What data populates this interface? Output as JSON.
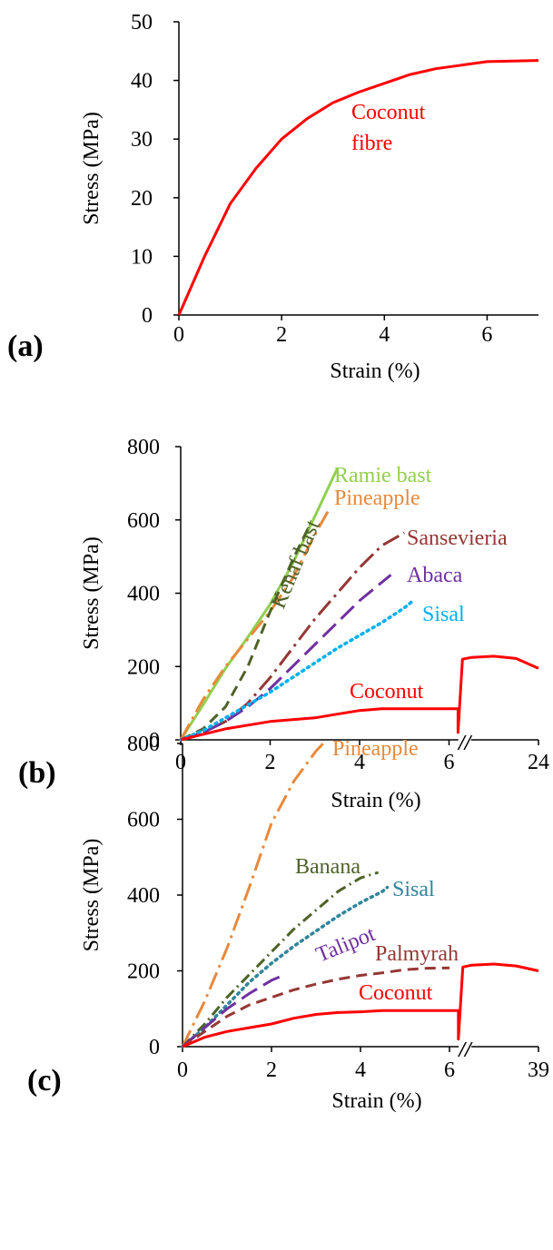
{
  "chart_data": [
    {
      "type": "line",
      "panel_label": "(a)",
      "xlabel": "Strain (%)",
      "ylabel": "Stress (MPa)",
      "xlim": [
        0,
        7
      ],
      "ylim": [
        0,
        50
      ],
      "xticks": [
        "0",
        "2",
        "4",
        "6"
      ],
      "yticks": [
        "0",
        "10",
        "20",
        "30",
        "40",
        "50"
      ],
      "series": [
        {
          "name": "Coconut fibre",
          "label_lines": [
            "Coconut",
            "fibre"
          ],
          "color": "#ff0000",
          "dash": "solid",
          "x": [
            0,
            0.5,
            1.0,
            1.5,
            2.0,
            2.5,
            3.0,
            3.5,
            4.0,
            4.5,
            5.0,
            5.5,
            6.0,
            7.0
          ],
          "y": [
            0,
            10,
            19,
            25,
            30,
            33.5,
            36.2,
            38,
            39.5,
            41,
            42,
            42.6,
            43.2,
            43.4
          ]
        }
      ]
    },
    {
      "type": "line",
      "panel_label": "(b)",
      "xlabel": "Strain (%)",
      "ylabel": "Stress (MPa)",
      "xlim": [
        0,
        8
      ],
      "ylim": [
        0,
        800
      ],
      "xticks": [
        "0",
        "2",
        "4",
        "6",
        "24"
      ],
      "yticks": [
        "0",
        "200",
        "400",
        "600",
        "800"
      ],
      "break_label": "//",
      "series": [
        {
          "name": "Ramie bast",
          "label_lines": [
            "Ramie bast"
          ],
          "color": "#92d050",
          "dash": "solid",
          "x": [
            0,
            0.5,
            1.0,
            1.5,
            2.0,
            2.5,
            3.0,
            3.5
          ],
          "y": [
            0,
            95,
            195,
            280,
            370,
            480,
            610,
            740
          ]
        },
        {
          "name": "Pineapple",
          "label_lines": [
            "Pineapple"
          ],
          "color": "#e8893b",
          "dash": "longdashdot",
          "x": [
            0,
            0.5,
            1.0,
            1.5,
            2.0,
            2.5,
            3.0,
            3.3
          ],
          "y": [
            0,
            110,
            200,
            275,
            350,
            440,
            560,
            625
          ]
        },
        {
          "name": "Kenaf bast",
          "label_lines": [
            "Kenaf bast"
          ],
          "color": "#4f6228",
          "dash": "dash",
          "x": [
            0,
            0.5,
            1.0,
            1.5,
            2.0,
            2.5,
            2.9
          ],
          "y": [
            0,
            30,
            90,
            200,
            350,
            490,
            590
          ]
        },
        {
          "name": "Sansevieria",
          "label_lines": [
            "Sansevieria"
          ],
          "color": "#953735",
          "dash": "longdashdot",
          "x": [
            0,
            0.5,
            1.0,
            1.5,
            2.0,
            2.5,
            3.0,
            3.5,
            4.0,
            4.5,
            5.0
          ],
          "y": [
            0,
            20,
            50,
            100,
            170,
            250,
            330,
            400,
            470,
            530,
            565
          ]
        },
        {
          "name": "Abaca",
          "label_lines": [
            "Abaca"
          ],
          "color": "#7030a0",
          "dash": "longdash",
          "x": [
            0,
            0.5,
            1.0,
            1.5,
            2.0,
            2.5,
            3.0,
            3.5,
            4.0,
            4.5,
            4.7
          ],
          "y": [
            0,
            20,
            50,
            90,
            140,
            200,
            260,
            320,
            380,
            430,
            450
          ]
        },
        {
          "name": "Sisal",
          "label_lines": [
            "Sisal"
          ],
          "color": "#00b0f0",
          "dash": "dot",
          "x": [
            0,
            0.5,
            1.0,
            1.5,
            2.0,
            2.5,
            3.0,
            3.5,
            4.0,
            4.5,
            5.0,
            5.2
          ],
          "y": [
            0,
            25,
            60,
            95,
            130,
            170,
            210,
            250,
            285,
            320,
            360,
            380
          ]
        },
        {
          "name": "Coconut",
          "label_lines": [
            "Coconut"
          ],
          "color": "#ff0000",
          "dash": "solid",
          "x": [
            0,
            0.5,
            1.0,
            2.0,
            3.0,
            3.5,
            4.0,
            4.5,
            5.0,
            5.5,
            6.0,
            6.2,
            6.2,
            6.3,
            6.5,
            7.0,
            7.5,
            8.0
          ],
          "y": [
            0,
            15,
            30,
            50,
            60,
            70,
            80,
            85,
            85,
            85,
            85,
            85,
            20,
            220,
            225,
            228,
            222,
            195
          ]
        }
      ]
    },
    {
      "type": "line",
      "panel_label": "(c)",
      "xlabel": "Strain (%)",
      "ylabel": "Stress (MPa)",
      "xlim": [
        0,
        8
      ],
      "ylim": [
        0,
        800
      ],
      "xticks": [
        "0",
        "2",
        "4",
        "6",
        "39"
      ],
      "yticks": [
        "0",
        "200",
        "400",
        "600",
        "800"
      ],
      "break_label": "//",
      "series": [
        {
          "name": "Pineapple",
          "label_lines": [
            "Pineapple"
          ],
          "color": "#e8893b",
          "dash": "longdashdot",
          "x": [
            0,
            0.5,
            1.0,
            1.5,
            2.0,
            2.5,
            3.0,
            3.2
          ],
          "y": [
            0,
            120,
            260,
            420,
            590,
            700,
            780,
            805
          ]
        },
        {
          "name": "Banana",
          "label_lines": [
            "Banana"
          ],
          "color": "#4f6228",
          "dash": "dashdot",
          "x": [
            0,
            0.5,
            1.0,
            1.5,
            2.0,
            2.5,
            3.0,
            3.5,
            4.0,
            4.4
          ],
          "y": [
            0,
            60,
            130,
            190,
            250,
            310,
            360,
            410,
            445,
            460
          ]
        },
        {
          "name": "Sisal",
          "label_lines": [
            "Sisal"
          ],
          "color": "#31859c",
          "dash": "dot",
          "x": [
            0,
            0.5,
            1.0,
            1.5,
            2.0,
            2.5,
            3.0,
            3.5,
            4.0,
            4.5,
            4.6
          ],
          "y": [
            0,
            50,
            110,
            170,
            220,
            265,
            305,
            345,
            380,
            410,
            420
          ]
        },
        {
          "name": "Talipot",
          "label_lines": [
            "Talipot"
          ],
          "color": "#7030a0",
          "dash": "longdash",
          "x": [
            0,
            0.5,
            1.0,
            1.5,
            2.0,
            2.2
          ],
          "y": [
            0,
            50,
            100,
            140,
            175,
            185
          ]
        },
        {
          "name": "Palmyrah",
          "label_lines": [
            "Palmyrah"
          ],
          "color": "#953735",
          "dash": "dash",
          "x": [
            0,
            0.5,
            1.0,
            1.5,
            2.0,
            2.5,
            3.0,
            3.5,
            4.0,
            4.5,
            5.0,
            5.5,
            6.0
          ],
          "y": [
            0,
            40,
            80,
            110,
            130,
            150,
            165,
            178,
            188,
            195,
            203,
            207,
            208
          ]
        },
        {
          "name": "Coconut",
          "label_lines": [
            "Coconut"
          ],
          "color": "#ff0000",
          "dash": "solid",
          "x": [
            0,
            0.5,
            1.0,
            1.5,
            2.0,
            2.5,
            3.0,
            3.5,
            4.0,
            4.5,
            5.0,
            5.5,
            6.0,
            6.2,
            6.2,
            6.3,
            6.5,
            7.0,
            7.5,
            8.0
          ],
          "y": [
            0,
            25,
            40,
            50,
            60,
            75,
            85,
            90,
            92,
            95,
            95,
            95,
            95,
            95,
            20,
            210,
            215,
            218,
            213,
            200
          ]
        }
      ]
    }
  ]
}
